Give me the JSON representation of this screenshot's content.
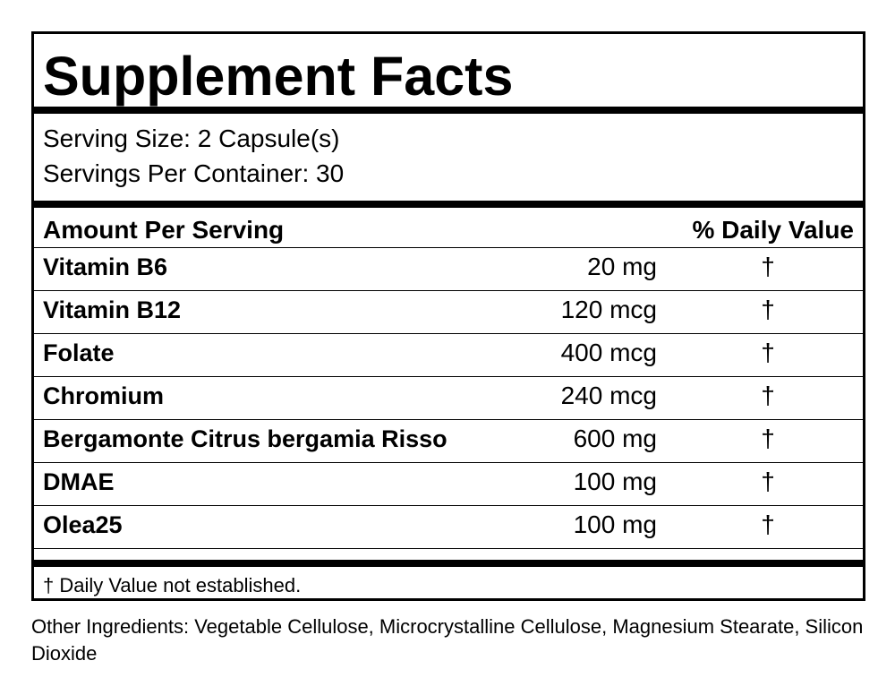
{
  "title": "Supplement Facts",
  "serving_size": "Serving Size: 2 Capsule(s)",
  "servings_per_container": "Servings Per Container: 30",
  "header": {
    "amount": "Amount Per Serving",
    "daily_value": "% Daily Value"
  },
  "nutrients": [
    {
      "name": "Vitamin B6",
      "amount": "20 mg",
      "dv": "†"
    },
    {
      "name": "Vitamin B12",
      "amount": "120 mcg",
      "dv": "†"
    },
    {
      "name": "Folate",
      "amount": "400 mcg",
      "dv": "†"
    },
    {
      "name": "Chromium",
      "amount": "240 mcg",
      "dv": "†"
    },
    {
      "name": "Bergamonte Citrus bergamia Risso",
      "amount": "600 mg",
      "dv": "†"
    },
    {
      "name": "DMAE",
      "amount": "100 mg",
      "dv": "†"
    },
    {
      "name": "Olea25",
      "amount": "100 mg",
      "dv": "†"
    }
  ],
  "footnote": "† Daily Value not established.",
  "other_ingredients": "Other Ingredients: Vegetable Cellulose, Microcrystalline Cellulose, Magnesium Stearate, Silicon Dioxide"
}
